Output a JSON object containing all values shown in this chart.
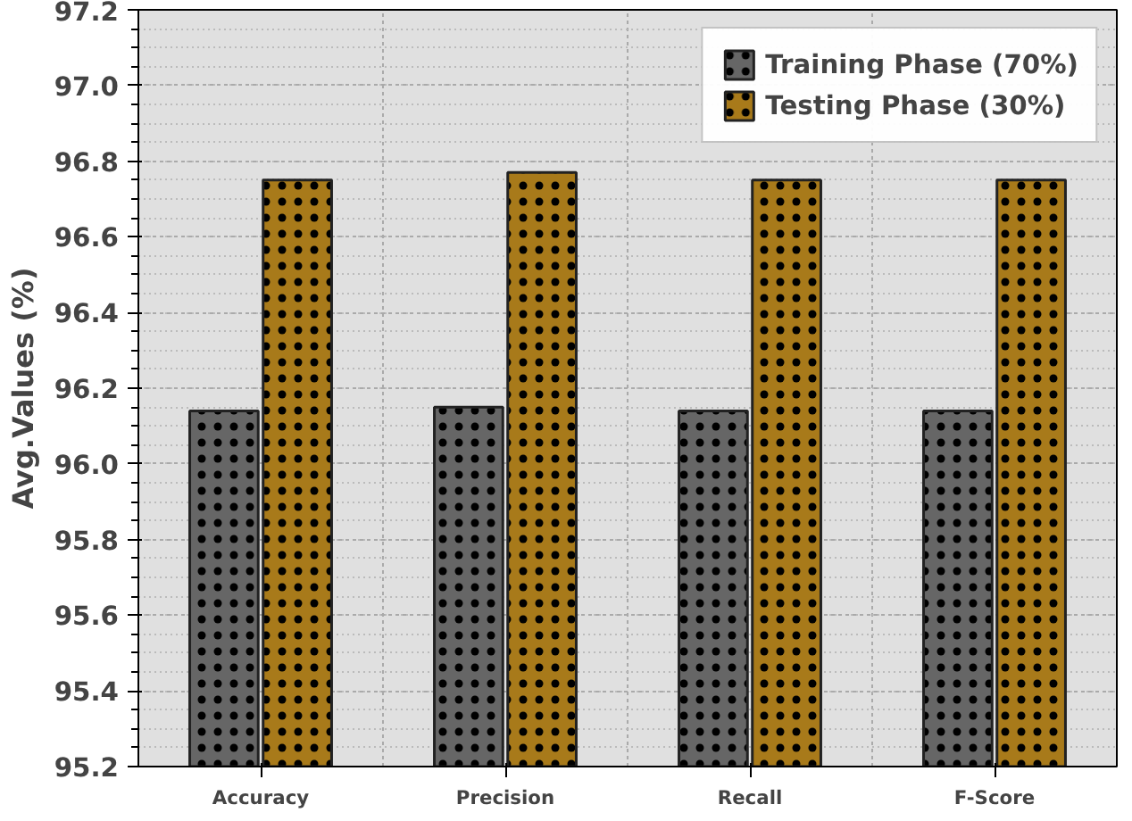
{
  "chart_data": {
    "type": "bar",
    "ylabel": "Avg.Values (%)",
    "categories": [
      "Accuracy",
      "Precision",
      "Recall",
      "F-Score"
    ],
    "series": [
      {
        "name": "Training Phase (70%)",
        "color": "#666666",
        "values": [
          96.14,
          96.15,
          96.14,
          96.14
        ]
      },
      {
        "name": "Testing Phase (30%)",
        "color": "#a87a1a",
        "values": [
          96.75,
          96.77,
          96.75,
          96.75
        ]
      }
    ],
    "ylim": [
      95.2,
      97.2
    ],
    "yticks": [
      {
        "value": 95.2,
        "label": "95.2"
      },
      {
        "value": 95.4,
        "label": "95.4"
      },
      {
        "value": 95.6,
        "label": "95.6"
      },
      {
        "value": 95.8,
        "label": "95.8"
      },
      {
        "value": 96.0,
        "label": "96.0"
      },
      {
        "value": 96.2,
        "label": "96.2"
      },
      {
        "value": 96.4,
        "label": "96.4"
      },
      {
        "value": 96.6,
        "label": "96.6"
      },
      {
        "value": 96.8,
        "label": "96.8"
      },
      {
        "value": 97.0,
        "label": "97.0"
      },
      {
        "value": 97.2,
        "label": "97.2"
      }
    ],
    "grid": true,
    "legend": "top right"
  }
}
